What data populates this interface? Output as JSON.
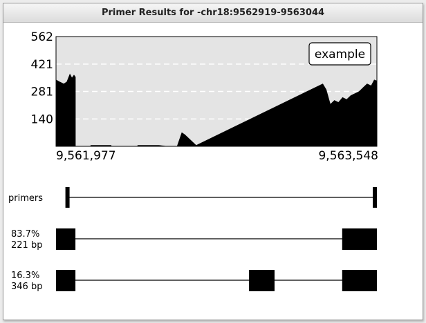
{
  "window": {
    "title": "Primer Results for -chr18:9562919-9563044"
  },
  "chart_data": {
    "type": "area",
    "title": "",
    "xlabel": "",
    "ylabel": "",
    "xlim": [
      9561977,
      9563548
    ],
    "ylim": [
      0,
      562
    ],
    "ytick_values": [
      140,
      281,
      421,
      562
    ],
    "ytick_labels": [
      "140",
      "281",
      "421",
      "562"
    ],
    "xtick_values": [
      9561977,
      9563548
    ],
    "xtick_labels": [
      "9,561,977",
      "9,563,548"
    ],
    "grid": "horizontal dashed",
    "legend_label": "example",
    "legend_position": "top-right",
    "series": [
      {
        "x": [
          9561977,
          9561995,
          9562015,
          9562030,
          9562045,
          9562055,
          9562065,
          9562072,
          9562072,
          9562147,
          9562147,
          9562247,
          9562247,
          9562377,
          9562377,
          9562480,
          9562520,
          9562570,
          9562593,
          9562607,
          9562663,
          9563283,
          9563300,
          9563320,
          9563340,
          9563360,
          9563380,
          9563400,
          9563420,
          9563440,
          9563460,
          9563480,
          9563500,
          9563520,
          9563535,
          9563548
        ],
        "y": [
          340,
          330,
          320,
          330,
          370,
          350,
          365,
          355,
          0,
          0,
          5,
          5,
          0,
          0,
          5,
          5,
          0,
          0,
          70,
          60,
          5,
          320,
          290,
          215,
          235,
          225,
          250,
          240,
          260,
          270,
          280,
          300,
          320,
          310,
          340,
          335
        ],
        "color": "#000000"
      }
    ]
  },
  "tracks": {
    "primers": {
      "label": "primers",
      "line": [
        9561977,
        9563548
      ],
      "markers": [
        [
          9562023,
          9562043
        ],
        [
          9563528,
          9563548
        ]
      ]
    },
    "products": [
      {
        "label_pct": "83.7%",
        "label_bp": "221 bp",
        "line": [
          9561977,
          9563548
        ],
        "exons": [
          [
            9561977,
            9562072
          ],
          [
            9563378,
            9563548
          ]
        ]
      },
      {
        "label_pct": "16.3%",
        "label_bp": "346 bp",
        "line": [
          9561977,
          9563548
        ],
        "exons": [
          [
            9561977,
            9562072
          ],
          [
            9562922,
            9563047
          ],
          [
            9563378,
            9563548
          ]
        ]
      }
    ]
  },
  "colors": {
    "plot_bg": "#e4e4e4",
    "grid": "#ffffff",
    "ink": "#000000"
  }
}
